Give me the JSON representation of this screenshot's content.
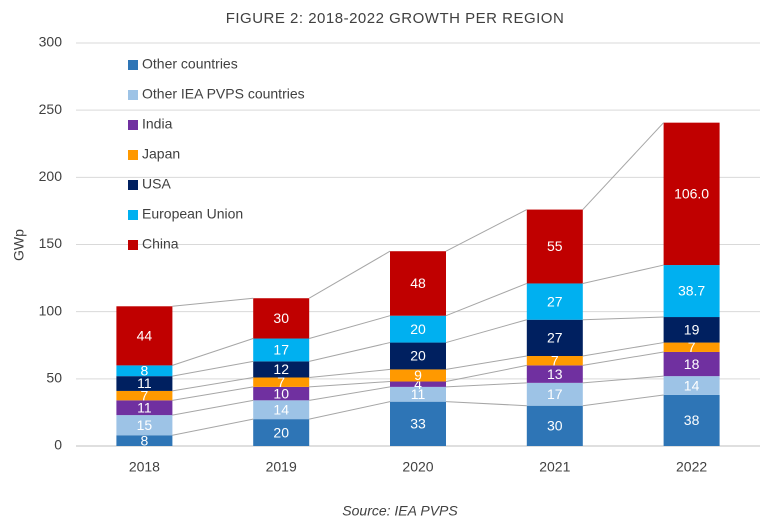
{
  "chart_data": {
    "type": "stacked_bar",
    "title": "FIGURE 2: 2018-2022 GROWTH PER REGION",
    "y_label": "GWp",
    "source": "Source: IEA PVPS",
    "categories": [
      "2018",
      "2019",
      "2020",
      "2021",
      "2022"
    ],
    "series": [
      {
        "name": "Other countries",
        "color": "#2e75b6",
        "values": [
          8,
          20,
          33,
          30,
          38
        ]
      },
      {
        "name": "Other IEA PVPS countries",
        "color": "#9dc3e6",
        "values": [
          15,
          14,
          11,
          17,
          14
        ]
      },
      {
        "name": "India",
        "color": "#7030a0",
        "values": [
          11,
          10,
          4,
          13,
          18
        ]
      },
      {
        "name": "Japan",
        "color": "#ff9900",
        "values": [
          7,
          7,
          9,
          7,
          7
        ]
      },
      {
        "name": "USA",
        "color": "#002060",
        "values": [
          11,
          12,
          20,
          27,
          19
        ]
      },
      {
        "name": "European Union",
        "color": "#00b0f0",
        "values": [
          8,
          17,
          20,
          27,
          38.7
        ]
      },
      {
        "name": "China",
        "color": "#c00000",
        "values": [
          44,
          30,
          48,
          55,
          106.0
        ],
        "value_labels": [
          "44",
          "30",
          "48",
          "55",
          "106.0"
        ]
      }
    ],
    "ylim": [
      0,
      300
    ],
    "yticks": [
      0,
      50,
      100,
      150,
      200,
      250,
      300
    ],
    "grid": true,
    "legend": "top-left"
  }
}
